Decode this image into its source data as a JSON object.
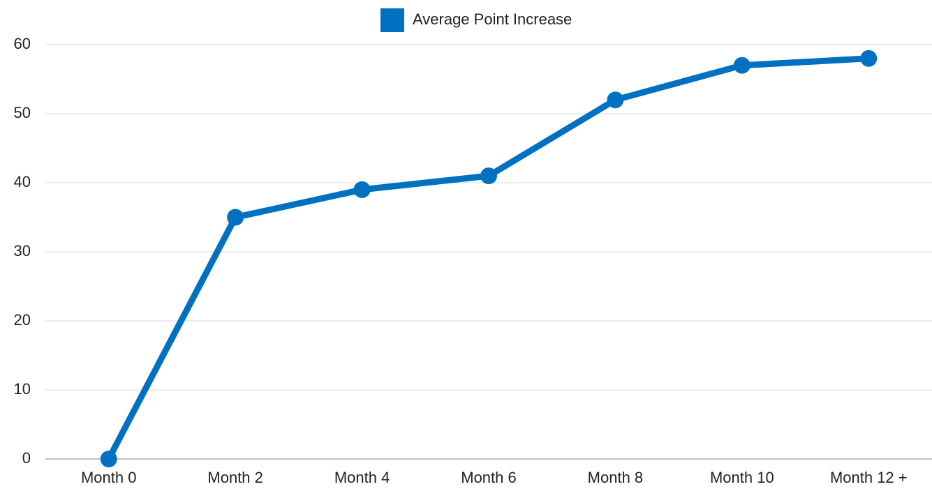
{
  "chart_data": {
    "type": "line",
    "categories": [
      "Month 0",
      "Month 2",
      "Month 4",
      "Month 6",
      "Month 8",
      "Month 10",
      "Month 12 +"
    ],
    "series": [
      {
        "name": "Average Point Increase",
        "color": "#0070c0",
        "values": [
          0,
          35,
          39,
          41,
          52,
          57,
          58
        ]
      }
    ],
    "ylim": [
      0,
      60
    ],
    "yticks": [
      0,
      10,
      20,
      30,
      40,
      50,
      60
    ],
    "grid": true,
    "legend": "top"
  }
}
